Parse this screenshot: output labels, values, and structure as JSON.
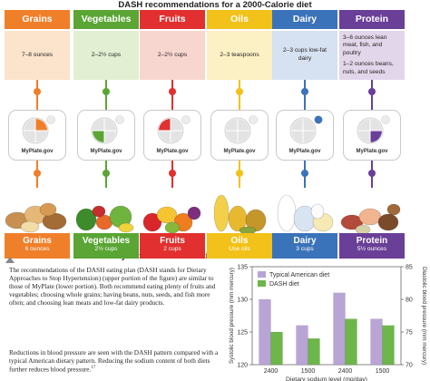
{
  "dash_title": "DASH recommendations for a 2000-Calorie diet",
  "myplate_title": "MyPlate recommendations for a 2000-Calorie diet",
  "plate_logo_text": "MyPlate.gov",
  "groups": [
    {
      "name": "Grains",
      "dash": "7–8 ounces",
      "myplate_amount": "6 ounces",
      "color": "#f07f2a",
      "light": "#fbe3cc",
      "highlight": "grains"
    },
    {
      "name": "Vegetables",
      "dash": "2–2½ cups",
      "myplate_amount": "2½ cups",
      "color": "#5aa534",
      "light": "#e2efd2",
      "highlight": "vegetables"
    },
    {
      "name": "Fruits",
      "dash": "2–2½ cups",
      "myplate_amount": "2 cups",
      "color": "#e1302f",
      "light": "#f8d6d0",
      "highlight": "fruits"
    },
    {
      "name": "Oils",
      "dash": "2–3 teaspoons",
      "myplate_amount": "Use oils",
      "color": "#f2c21a",
      "light": "#fcf1c4",
      "highlight": "none"
    },
    {
      "name": "Dairy",
      "dash": "2–3 cups low-fat dairy",
      "myplate_amount": "3 cups",
      "color": "#3a73b9",
      "light": "#d6e1f1",
      "highlight": "dairy"
    },
    {
      "name": "Protein",
      "dash_lines": [
        "3–6 ounces lean meat, fish, and poultry",
        "1–2 ounces beans, nuts, and seeds"
      ],
      "myplate_amount": "5½ ounces",
      "color": "#6a3f98",
      "light": "#e1d6ea",
      "highlight": "protein"
    }
  ],
  "paragraph1": "The recommendations of the DASH eating plan (DASH stands for Dietary Approaches to Stop Hypertension) (upper portion of the figure) are similar to those of MyPlate (lower portion). Both recommend eating plenty of fruits and vegetables; choosing whole grains; having beans, nuts, seeds, and fish more often; and choosing lean meats and low-fat dairy products.",
  "paragraph2": "Reductions in blood pressure are seen with the DASH pattern compared with a typical American dietary pattern. Reducing the sodium content of both diets further reduces blood pressure.",
  "paragraph2_ref": "17",
  "colors": {
    "typical": "#b9a4d6",
    "dash": "#6db64a"
  },
  "chart_data": {
    "type": "bar",
    "categories": [
      "2400",
      "1500",
      "2400",
      "1500"
    ],
    "series": [
      {
        "name": "Typical American diet",
        "values": [
          130,
          126,
          131,
          127
        ]
      },
      {
        "name": "DASH diet",
        "values": [
          125,
          124,
          127,
          126
        ]
      }
    ],
    "left_axis": {
      "label": "Systolic blood pressure (mm mercury)",
      "ticks": [
        "120",
        "125",
        "130",
        "135"
      ],
      "ylim": [
        120,
        135
      ]
    },
    "right_axis": {
      "label": "Diastolic blood pressure (mm mercury)",
      "ticks": [
        "70",
        "75",
        "80",
        "85"
      ],
      "ylim": [
        70,
        85
      ]
    },
    "xlabel": "Dietary sodium level (mg/day)",
    "legend": "top-left",
    "grid": false
  }
}
